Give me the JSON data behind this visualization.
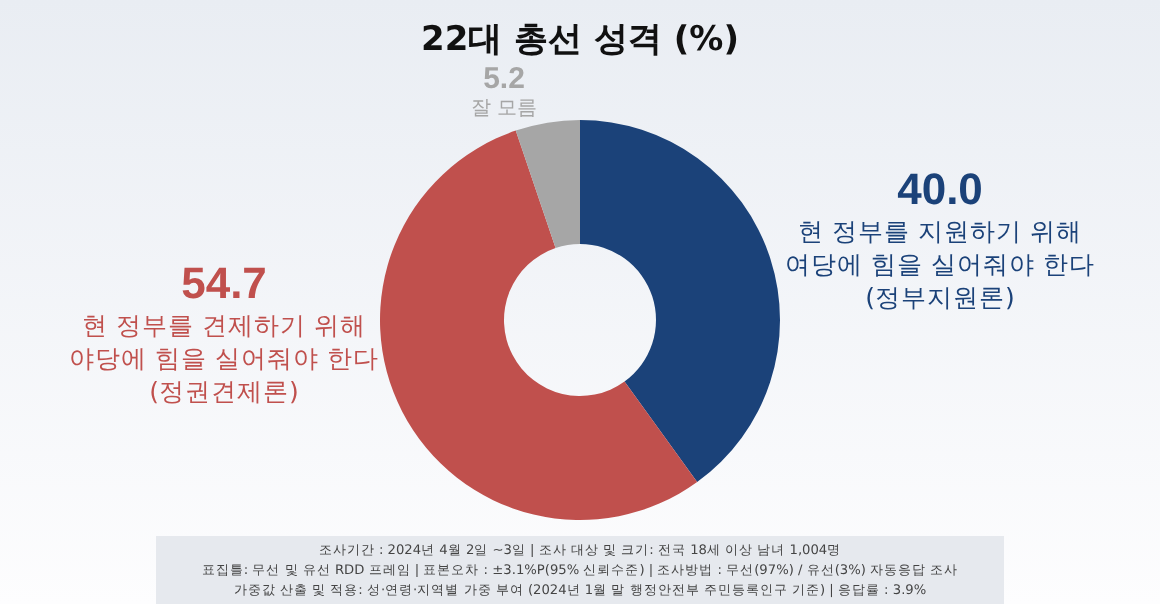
{
  "chart_data": {
    "type": "donut",
    "title": "22대 총선 성격 (%)",
    "categories": [
      "현 정부를 지원하기 위해\n여당에 힘을 실어줘야 한다\n(정부지원론)",
      "현 정부를 견제하기 위해\n야당에 힘을 실어줘야 한다\n(정권견제론)",
      "잘 모름"
    ],
    "values": [
      40.0,
      54.7,
      5.2
    ],
    "colors": [
      "#1b4279",
      "#c0504d",
      "#a6a6a6"
    ],
    "value_labels": [
      "40.0",
      "54.7",
      "5.2"
    ],
    "legend": false,
    "annotations": [
      "조사기간 : 2024년 4월 2일 ~3일 | 조사 대상 및 크기: 전국 18세 이상 남녀 1,004명",
      "표집틀: 무선 및 유선 RDD 프레임 | 표본오차 : ±3.1%P(95% 신뢰수준) | 조사방법 : 무선(97%) / 유선(3%) 자동응답 조사",
      "가중값 산출 및 적용: 성·연령·지역별 가중 부여 (2024년 1월 말 행정안전부 주민등록인구 기준) | 응답률 : 3.9%"
    ]
  }
}
